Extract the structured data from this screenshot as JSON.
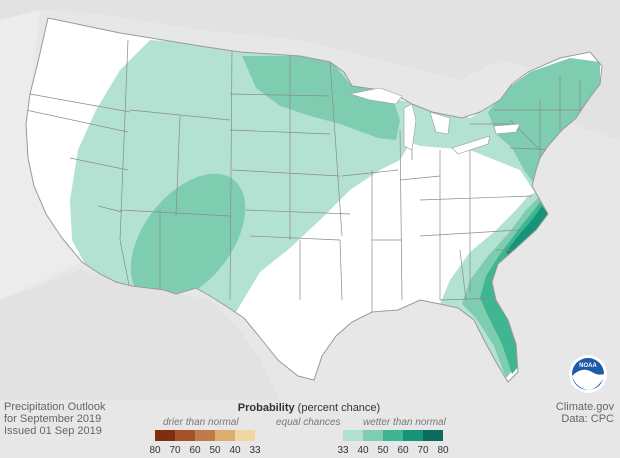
{
  "title_block": {
    "line1": "Precipitation Outlook",
    "line2": "for September 2019",
    "line3": "Issued 01 Sep 2019"
  },
  "credits": {
    "site": "Climate.gov",
    "data": "Data: CPC"
  },
  "legend": {
    "title_bold": "Probability",
    "title_rest": " (percent chance)",
    "drier_label": "drier than normal",
    "equal_label": "equal chances",
    "wetter_label": "wetter than normal",
    "drier_ticks": [
      "80",
      "70",
      "60",
      "50",
      "40",
      "33"
    ],
    "wetter_ticks": [
      "33",
      "40",
      "50",
      "60",
      "70",
      "80"
    ],
    "drier_colors": [
      "#7f2f0f",
      "#a5522a",
      "#c07a4a",
      "#dcae6e",
      "#f2d6a2"
    ],
    "wetter_colors": [
      "#b1e0cf",
      "#7fcdb0",
      "#3fb592",
      "#17937a",
      "#0d6b5e"
    ]
  },
  "noaa_logo": {
    "label": "NOAA"
  },
  "map_regions": [
    {
      "name": "wetter 33-40 west & north",
      "probability": "33-40",
      "category": "wetter"
    },
    {
      "name": "wetter 40-50 southwest (Arizona/New Mexico)",
      "probability": "40-50",
      "category": "wetter"
    },
    {
      "name": "wetter 40-50 upper midwest (Minnesota/Wisconsin)",
      "probability": "40-50",
      "category": "wetter"
    },
    {
      "name": "wetter 40-50 northeast",
      "probability": "40-50",
      "category": "wetter"
    },
    {
      "name": "wetter 33-40 southeast coast",
      "probability": "33-40",
      "category": "wetter"
    },
    {
      "name": "wetter 40-50 southeast coast",
      "probability": "40-50",
      "category": "wetter"
    },
    {
      "name": "wetter 50-60 southeast coast",
      "probability": "50-60",
      "category": "wetter"
    },
    {
      "name": "wetter 60-70 Carolinas coast",
      "probability": "60-70",
      "category": "wetter"
    },
    {
      "name": "equal chances remainder",
      "probability": "33",
      "category": "equal"
    }
  ]
}
